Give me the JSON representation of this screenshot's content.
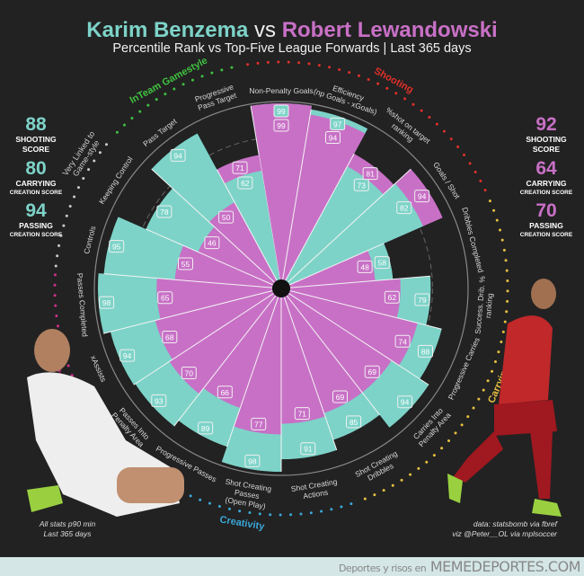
{
  "header": {
    "player1": "Karim Benzema",
    "vs": "vs",
    "player2": "Robert Lewandowski",
    "subtitle": "Percentile Rank vs Top-Five League Forwards | Last 365 days"
  },
  "scores": {
    "player1": [
      {
        "value": "88",
        "label": "SHOOTING",
        "sub": "SCORE"
      },
      {
        "value": "80",
        "label": "CARRYING",
        "sub": "CREATION SCORE"
      },
      {
        "value": "94",
        "label": "PASSING",
        "sub": "CREATION SCORE"
      }
    ],
    "player2": [
      {
        "value": "92",
        "label": "SHOOTING",
        "sub": "SCORE"
      },
      {
        "value": "64",
        "label": "CARRYING",
        "sub": "CREATION SCORE"
      },
      {
        "value": "70",
        "label": "PASSING",
        "sub": "CREATION SCORE"
      }
    ]
  },
  "notes": {
    "left": [
      "All stats p90 min",
      "Last 365 days"
    ],
    "right": [
      "data: statsbomb via fbref",
      "viz @Peter__OL via mplsoccer"
    ]
  },
  "footer": {
    "prefix": "Deportes y risos en",
    "site": "MEMEDEPORTES.COM"
  },
  "chart_data": {
    "type": "pizza",
    "title": "Karim Benzema vs Robert Lewandowski",
    "subtitle": "Percentile Rank vs Top-Five League Forwards | Last 365 days",
    "range": [
      0,
      100
    ],
    "colors": {
      "Karim Benzema": "#7dd3c8",
      "Robert Lewandowski": "#c870c6",
      "background": "#222222"
    },
    "categories": [
      [
        "Non-Penalty Goals"
      ],
      [
        "Efficiency",
        "(np Goals - xGoals)"
      ],
      [
        "%shot on target",
        "ranking"
      ],
      [
        "Goals / Shot"
      ],
      [
        "Dribbles Completed"
      ],
      [
        "Success. Drib. %",
        "ranking"
      ],
      [
        "Progressive Carries"
      ],
      [
        "Carries Into",
        "Penalty Area"
      ],
      [
        "Shot Creating",
        "Dribbles"
      ],
      [
        "Shot Creating",
        "Actions"
      ],
      [
        "Shot Creating",
        "Passes",
        "(Open Play)"
      ],
      [
        "Progressive Passes"
      ],
      [
        "Passes Into",
        "Penalty Area"
      ],
      [
        "xAssists"
      ],
      [
        "Passes Completed"
      ],
      [
        "Controls"
      ],
      [
        "Keeping Control"
      ],
      [
        "Pass Target"
      ],
      [
        "Progressive",
        "Pass Target"
      ]
    ],
    "series": [
      {
        "name": "Karim Benzema",
        "values": [
          99,
          97,
          73,
          82,
          58,
          79,
          88,
          94,
          85,
          91,
          98,
          89,
          93,
          94,
          98,
          95,
          78,
          94,
          62
        ]
      },
      {
        "name": "Robert Lewandowski",
        "values": [
          99,
          94,
          81,
          94,
          48,
          62,
          74,
          69,
          69,
          71,
          77,
          66,
          70,
          68,
          65,
          55,
          46,
          50,
          71
        ]
      }
    ],
    "groups": [
      {
        "name": "Shooting",
        "color": "#e0302a",
        "from": 0,
        "to": 3
      },
      {
        "name": "Carrying",
        "color": "#e8c040",
        "from": 4,
        "to": 8
      },
      {
        "name": "Creativity",
        "color": "#3aa8d8",
        "from": 9,
        "to": 11
      },
      {
        "name": "Passing",
        "color": "#d0308a",
        "from": 12,
        "to": 14
      },
      {
        "name": "Very Linked to Game-style",
        "color": "#cccccc",
        "from": 15,
        "to": 16
      },
      {
        "name": "InTeam Gamestyle",
        "color": "#40c040",
        "from": 17,
        "to": 18
      }
    ]
  }
}
